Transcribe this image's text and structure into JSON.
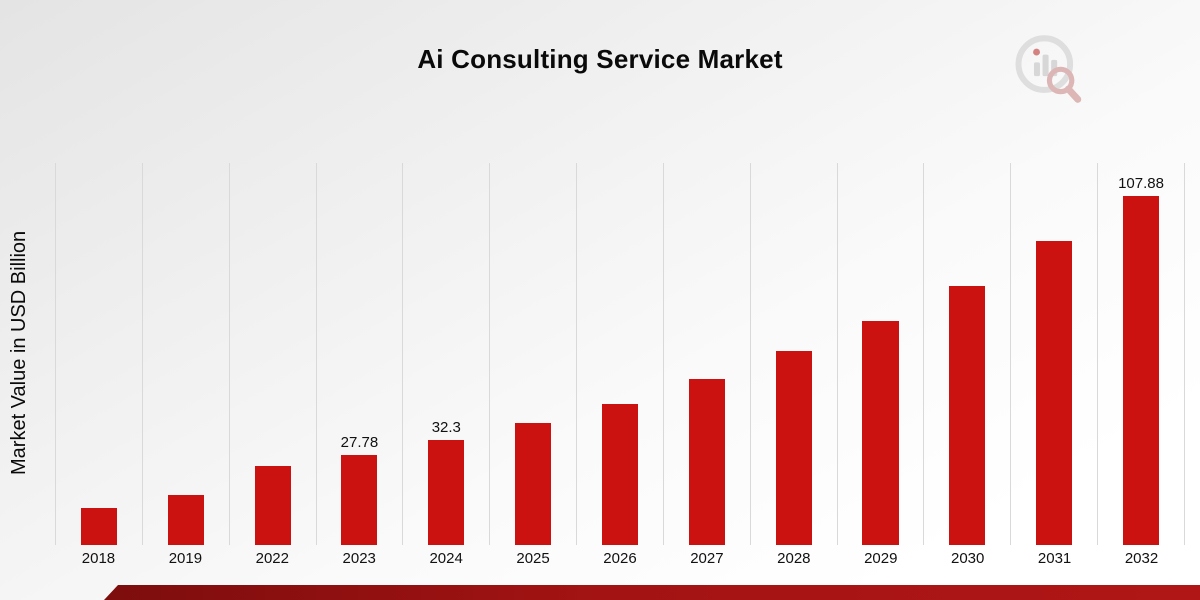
{
  "header": {
    "title": "Ai Consulting Service Market"
  },
  "chart_data": {
    "type": "bar",
    "title": "Ai Consulting Service Market",
    "xlabel": "",
    "ylabel": "Market Value in USD Billion",
    "ylim": [
      0,
      118
    ],
    "grid": "vertical-gridlines-only",
    "legend": "none",
    "bar_color": "#cc1111",
    "gridline_color": "#d9d9d9",
    "categories": [
      "2018",
      "2019",
      "2022",
      "2023",
      "2024",
      "2025",
      "2026",
      "2027",
      "2028",
      "2029",
      "2030",
      "2031",
      "2032"
    ],
    "values": [
      11.5,
      15.5,
      24.5,
      27.78,
      32.3,
      37.8,
      43.7,
      51.2,
      59.8,
      69.1,
      80.0,
      93.9,
      107.88
    ],
    "data_labels": {
      "2023": "27.78",
      "2024": "32.3",
      "2032": "107.88"
    }
  },
  "footer": {
    "accent_color": "#a31313"
  }
}
